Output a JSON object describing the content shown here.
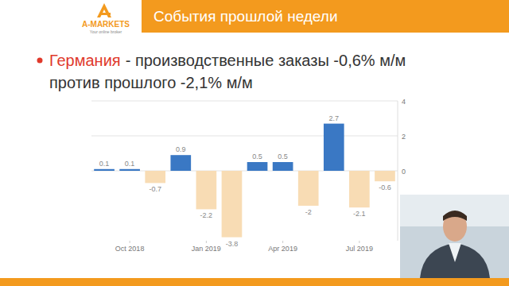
{
  "header": {
    "logo": "A-MARKETS",
    "logo_tagline": "Your online broker",
    "title": "События прошлой недели"
  },
  "bullet": {
    "country": "Германия",
    "line1": "- производственные заказы -0,6% м/м",
    "line2": "против прошлого -2,1% м/м"
  },
  "chart_data": {
    "type": "bar",
    "categories": [
      null,
      "Oct 2018",
      null,
      null,
      "Jan 2019",
      null,
      null,
      "Apr 2019",
      null,
      null,
      "Jul 2019",
      null
    ],
    "values": [
      0.1,
      0.1,
      -0.7,
      0.9,
      -2.2,
      -3.8,
      0.5,
      0.5,
      -2,
      2.7,
      -2.1,
      -0.6
    ],
    "colors": [
      "#3a78c4",
      "#3a78c4",
      "#f8dcb4",
      "#3a78c4",
      "#f8dcb4",
      "#f8dcb4",
      "#3a78c4",
      "#3a78c4",
      "#f8dcb4",
      "#3a78c4",
      "#f8dcb4",
      "#f8dcb4"
    ],
    "ylim": [
      -4,
      4
    ],
    "yticks": [
      0,
      2,
      4
    ],
    "grid": true,
    "data_labels": true
  }
}
